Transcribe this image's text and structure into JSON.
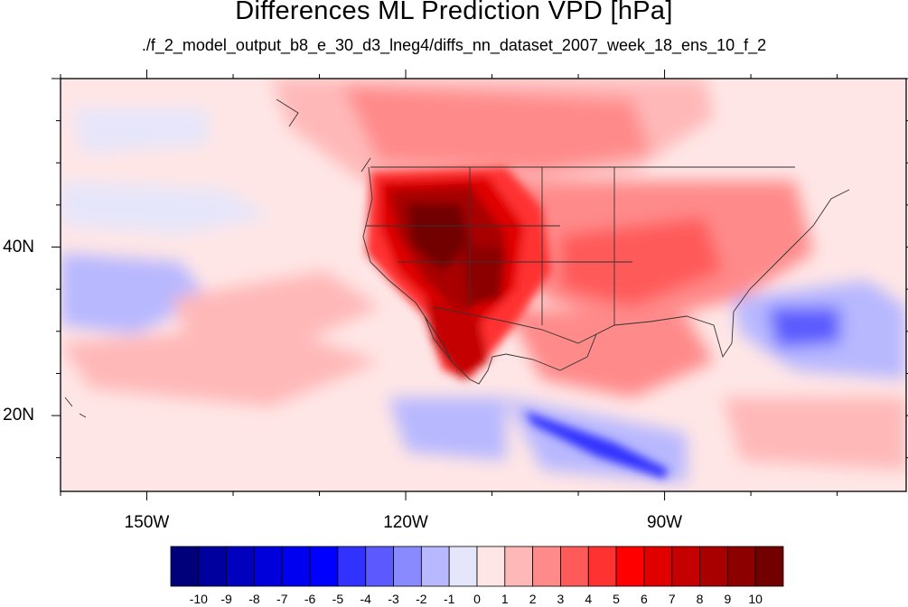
{
  "title": "Differences ML Prediction VPD [hPa]",
  "subtitle": "./f_2_model_output_b8_e_30_d3_lneg4/diffs_nn_dataset_2007_week_18_ens_10_f_2",
  "map": {
    "projection": "cylindrical-equidistant",
    "lon_range": [
      -160,
      -62
    ],
    "lat_range": [
      11,
      60
    ],
    "x_tick_labels": [
      {
        "lon": -150,
        "label": "150W"
      },
      {
        "lon": -120,
        "label": "120W"
      },
      {
        "lon": -90,
        "label": "90W"
      }
    ],
    "y_tick_labels": [
      {
        "lat": 20,
        "label": "20N"
      },
      {
        "lat": 40,
        "label": "40N"
      }
    ],
    "features": [
      "coastlines",
      "US state boundaries"
    ],
    "field_summary": "strong positive differences (up to ~10 hPa) over the western US and northwest Mexico; weak positive values over the central US and Canada; negative values off the southeast US coast and along the Pacific coast of southern Mexico/Central America"
  },
  "colorbar": {
    "labels": [
      "-10",
      "-9",
      "-8",
      "-7",
      "-6",
      "-5",
      "-4",
      "-3",
      "-2",
      "-1",
      "0",
      "1",
      "2",
      "3",
      "4",
      "5",
      "6",
      "7",
      "8",
      "9",
      "10"
    ],
    "colors": [
      "#00007a",
      "#00009e",
      "#0000be",
      "#0000da",
      "#0000f0",
      "#0000ff",
      "#3232ff",
      "#5a5aff",
      "#8a8aff",
      "#b8b8ff",
      "#e6e6fa",
      "#ffe6e6",
      "#ffb8b8",
      "#ff8a8a",
      "#ff5a5a",
      "#ff3232",
      "#ff0000",
      "#e00000",
      "#c40000",
      "#a80000",
      "#8c0000",
      "#720000"
    ]
  }
}
